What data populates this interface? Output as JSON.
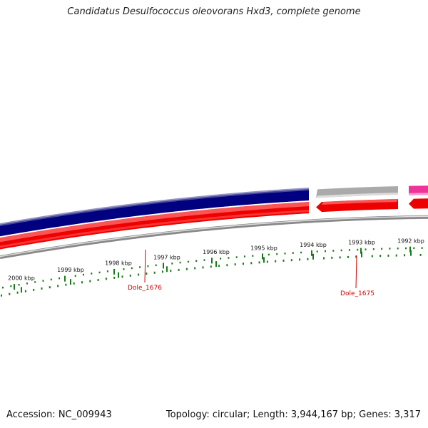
{
  "title": "Candidatus Desulfococcus oleovorans Hxd3, complete genome",
  "ruler": {
    "labels": [
      "2000 kbp",
      "1999 kbp",
      "1998 kbp",
      "1997 kbp",
      "1996 kbp",
      "1995 kbp",
      "1994 kbp",
      "1993 kbp",
      "1992 kbp"
    ],
    "tick_color": "#1a7a1a"
  },
  "genes": [
    {
      "label": "Dole_1676",
      "strand": "reverse",
      "color": "#000080"
    },
    {
      "label": "Dole_1675",
      "strand": "reverse",
      "color": "#aaaaaa"
    }
  ],
  "tracks": {
    "forward_cds": "#ee0000",
    "reverse_cds": "#000080",
    "rna": "#ee3399",
    "backbone": "#888888"
  },
  "footer": {
    "accession": "Accession: NC_009943",
    "topology": "Topology: circular; Length: 3,944,167 bp; Genes: 3,317"
  }
}
